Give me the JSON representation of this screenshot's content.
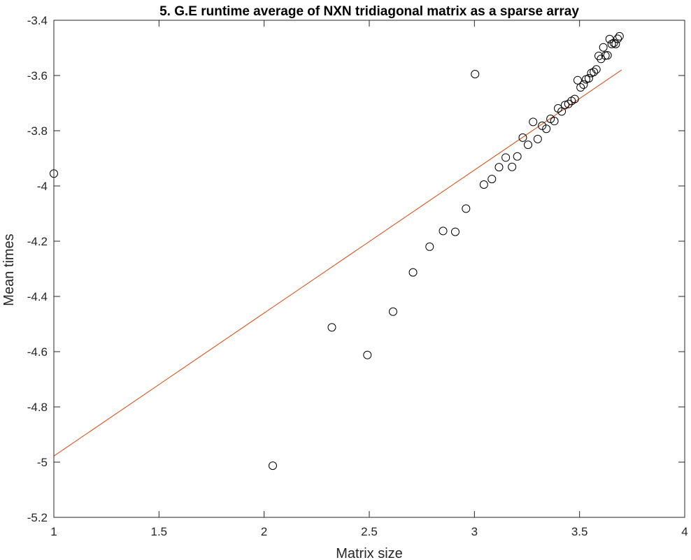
{
  "chart_data": {
    "type": "scatter",
    "title": "5. G.E runtime average of NXN tridiagonal matrix as a sparse array",
    "xlabel": "Matrix size",
    "ylabel": "Mean times",
    "xlim": [
      1,
      4
    ],
    "ylim": [
      -5.2,
      -3.4
    ],
    "xticks": [
      1,
      1.5,
      2,
      2.5,
      3,
      3.5,
      4
    ],
    "xtick_labels": [
      "1",
      "1.5",
      "2",
      "2.5",
      "3",
      "3.5",
      "4"
    ],
    "yticks": [
      -5.2,
      -5,
      -4.8,
      -4.6,
      -4.4,
      -4.2,
      -4,
      -3.8,
      -3.6,
      -3.4
    ],
    "ytick_labels": [
      "-5.2",
      "-5",
      "-4.8",
      "-4.6",
      "-4.4",
      "-4.2",
      "-4",
      "-3.8",
      "-3.6",
      "-3.4"
    ],
    "grid": false,
    "legend": "none",
    "series": [
      {
        "marker": "circle",
        "color": "#000000",
        "points": [
          [
            1.0,
            -3.955
          ],
          [
            2.041,
            -5.013
          ],
          [
            2.322,
            -4.512
          ],
          [
            2.491,
            -4.612
          ],
          [
            2.613,
            -4.455
          ],
          [
            2.708,
            -4.313
          ],
          [
            2.787,
            -4.22
          ],
          [
            2.851,
            -4.163
          ],
          [
            2.909,
            -4.166
          ],
          [
            2.96,
            -4.082
          ],
          [
            3.003,
            -3.595
          ],
          [
            3.045,
            -3.995
          ],
          [
            3.083,
            -3.975
          ],
          [
            3.117,
            -3.932
          ],
          [
            3.149,
            -3.897
          ],
          [
            3.179,
            -3.931
          ],
          [
            3.204,
            -3.893
          ],
          [
            3.23,
            -3.825
          ],
          [
            3.255,
            -3.851
          ],
          [
            3.279,
            -3.768
          ],
          [
            3.301,
            -3.83
          ],
          [
            3.322,
            -3.782
          ],
          [
            3.342,
            -3.793
          ],
          [
            3.362,
            -3.757
          ],
          [
            3.38,
            -3.765
          ],
          [
            3.398,
            -3.719
          ],
          [
            3.415,
            -3.73
          ],
          [
            3.431,
            -3.707
          ],
          [
            3.447,
            -3.703
          ],
          [
            3.462,
            -3.692
          ],
          [
            3.477,
            -3.685
          ],
          [
            3.491,
            -3.617
          ],
          [
            3.505,
            -3.643
          ],
          [
            3.519,
            -3.633
          ],
          [
            3.531,
            -3.614
          ],
          [
            3.544,
            -3.61
          ],
          [
            3.556,
            -3.591
          ],
          [
            3.568,
            -3.587
          ],
          [
            3.58,
            -3.578
          ],
          [
            3.591,
            -3.529
          ],
          [
            3.602,
            -3.54
          ],
          [
            3.613,
            -3.498
          ],
          [
            3.623,
            -3.528
          ],
          [
            3.633,
            -3.527
          ],
          [
            3.643,
            -3.468
          ],
          [
            3.653,
            -3.486
          ],
          [
            3.663,
            -3.482
          ],
          [
            3.672,
            -3.486
          ],
          [
            3.681,
            -3.467
          ],
          [
            3.69,
            -3.458
          ]
        ]
      },
      {
        "marker": "line",
        "color": "#d95319",
        "points": [
          [
            1.0,
            -4.978
          ],
          [
            3.7,
            -3.58
          ]
        ]
      }
    ]
  }
}
